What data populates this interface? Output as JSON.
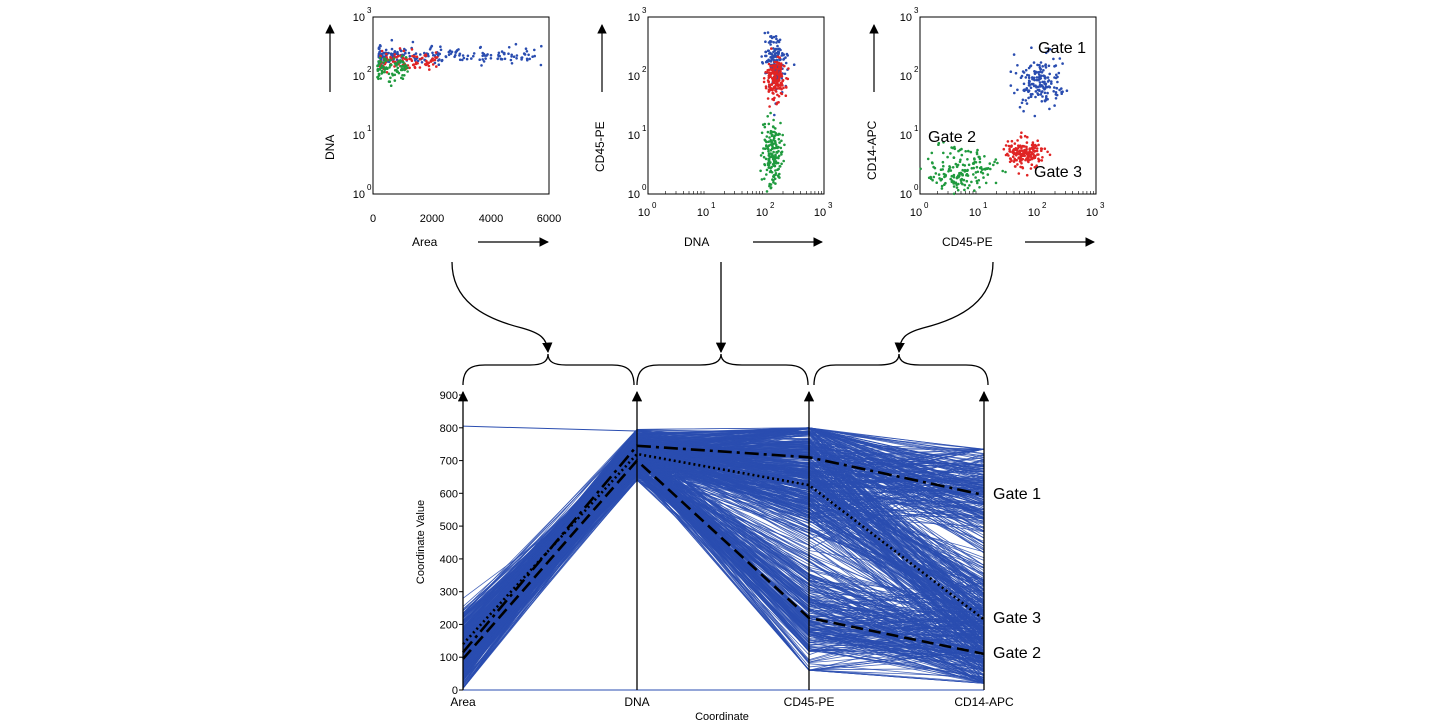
{
  "chart_data": [
    {
      "type": "scatter",
      "xlabel": "Area",
      "ylabel": "DNA",
      "x_ticks": [
        "0",
        "2000",
        "4000",
        "6000"
      ],
      "xlim": [
        0,
        6000
      ],
      "y_scale": "log",
      "y_ticks_base": [
        "10",
        "10",
        "10",
        "10"
      ],
      "y_ticks_exp": [
        "0",
        "1",
        "2",
        "3"
      ],
      "ylim": [
        1,
        1000
      ],
      "clusters": [
        {
          "color": "#2a4db0",
          "x_range": [
            200,
            5800
          ],
          "y_center": 220,
          "y_spread": 0.08
        },
        {
          "color": "#e02424",
          "x_range": [
            250,
            2200
          ],
          "y_center": 180,
          "y_spread": 0.08
        },
        {
          "color": "#1f9a3e",
          "x_range": [
            150,
            1200
          ],
          "y_center": 140,
          "y_spread": 0.1
        }
      ]
    },
    {
      "type": "scatter",
      "xlabel": "DNA",
      "ylabel": "CD45-PE",
      "log_base": "10",
      "tick_exp": [
        "0",
        "1",
        "2",
        "3"
      ],
      "x_scale": "log",
      "y_scale": "log",
      "xlim": [
        1,
        1000
      ],
      "ylim": [
        1,
        1000
      ],
      "clusters": [
        {
          "color": "#2a4db0",
          "x_center": 150,
          "y_center": 170,
          "x_spread": 0.1,
          "y_spread": 0.22
        },
        {
          "color": "#e02424",
          "x_center": 150,
          "y_center": 90,
          "x_spread": 0.08,
          "y_spread": 0.18
        },
        {
          "color": "#1f9a3e",
          "x_center": 130,
          "y_center": 5,
          "x_spread": 0.08,
          "y_spread": 0.28
        }
      ]
    },
    {
      "type": "scatter",
      "xlabel": "CD45-PE",
      "ylabel": "CD14-APC",
      "log_base": "10",
      "tick_exp": [
        "0",
        "1",
        "2",
        "3"
      ],
      "x_scale": "log",
      "y_scale": "log",
      "xlim": [
        1,
        1000
      ],
      "ylim": [
        1,
        1000
      ],
      "annotations": [
        "Gate 1",
        "Gate 2",
        "Gate 3"
      ],
      "clusters": [
        {
          "name": "Gate 1",
          "color": "#2a4db0",
          "x_center": 110,
          "y_center": 75,
          "x_spread": 0.22,
          "y_spread": 0.2
        },
        {
          "name": "Gate 2",
          "color": "#1f9a3e",
          "x_center": 5,
          "y_center": 2.5,
          "x_spread": 0.28,
          "y_spread": 0.2
        },
        {
          "name": "Gate 3",
          "color": "#e02424",
          "x_center": 60,
          "y_center": 5,
          "x_spread": 0.15,
          "y_spread": 0.12
        }
      ]
    },
    {
      "type": "line",
      "subtype": "parallel-coordinates",
      "xlabel": "Coordinate",
      "ylabel": "Coordinate Value",
      "categories": [
        "Area",
        "DNA",
        "CD45-PE",
        "CD14-APC"
      ],
      "ylim": [
        0,
        900
      ],
      "y_ticks": [
        "0",
        "100",
        "200",
        "300",
        "400",
        "500",
        "600",
        "700",
        "800",
        "900"
      ],
      "background_color": "#2a4db0",
      "series": [
        {
          "name": "Gate 1",
          "style": "dash-dot",
          "values": [
            115,
            745,
            710,
            595
          ]
        },
        {
          "name": "Gate 3",
          "style": "dotted",
          "values": [
            140,
            720,
            625,
            215
          ]
        },
        {
          "name": "Gate 2",
          "style": "dashed",
          "values": [
            95,
            700,
            220,
            110
          ]
        }
      ],
      "gate_labels": [
        "Gate 1",
        "Gate 3",
        "Gate 2"
      ]
    }
  ]
}
